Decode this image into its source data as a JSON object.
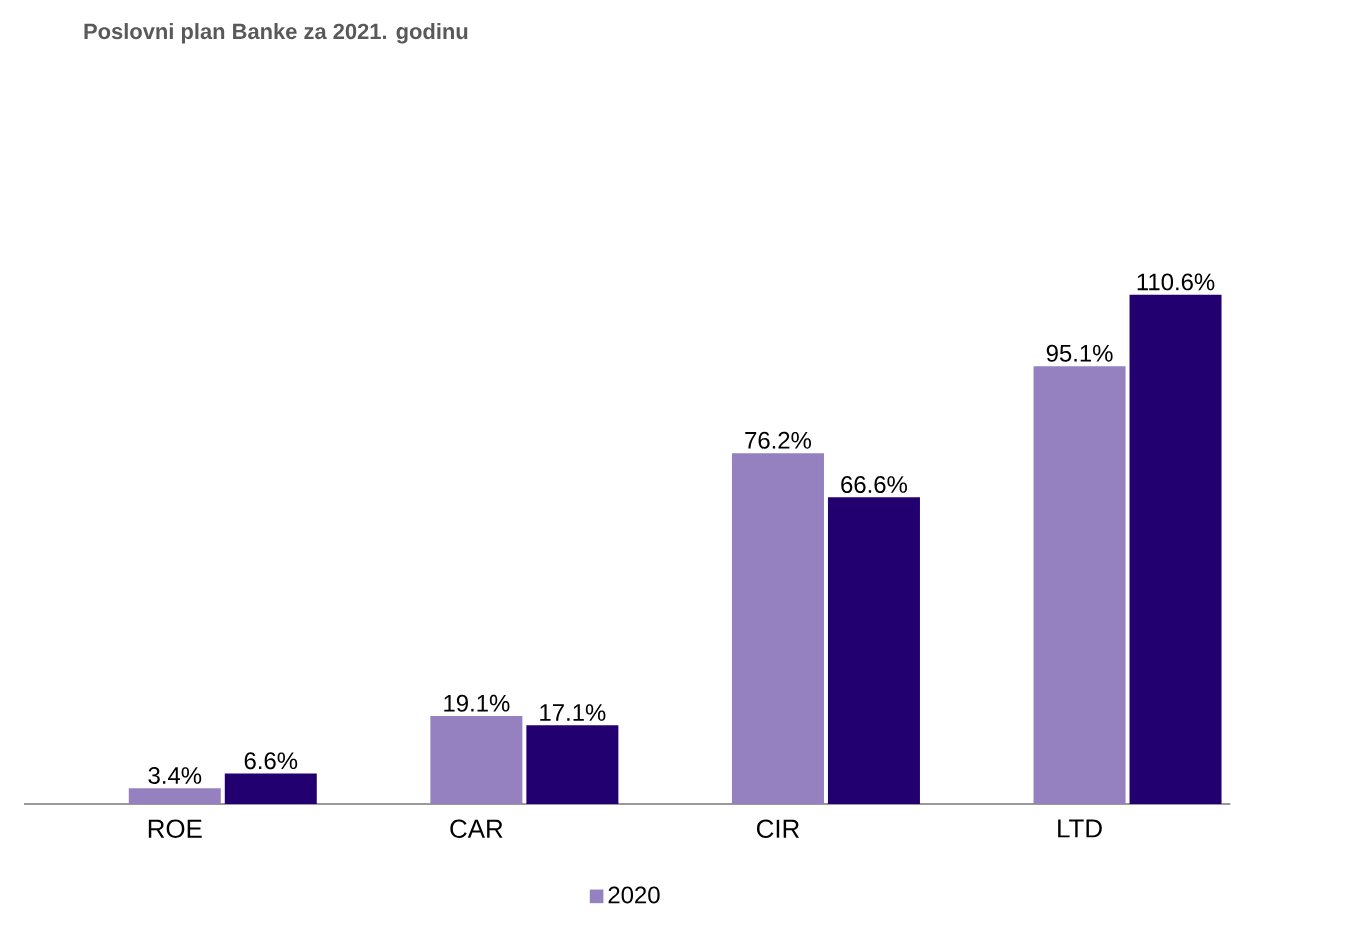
{
  "chart_data": {
    "type": "bar",
    "title": "Poslovni plan Banke za 2021. godinu",
    "categories": [
      "ROE",
      "CAR",
      "CIR",
      "LTD"
    ],
    "series": [
      {
        "name": "2020",
        "color": "#9580c0",
        "values": [
          3.4,
          19.1,
          76.2,
          95.1
        ],
        "value_labels": [
          "3.4%",
          "19.1%",
          "76.2%",
          "95.1%"
        ]
      },
      {
        "color": "#220070",
        "values": [
          6.6,
          17.1,
          66.6,
          110.6
        ],
        "value_labels": [
          "6.6%",
          "17.1%",
          "66.6%",
          "110.6%"
        ]
      }
    ],
    "legend": "bottom"
  }
}
